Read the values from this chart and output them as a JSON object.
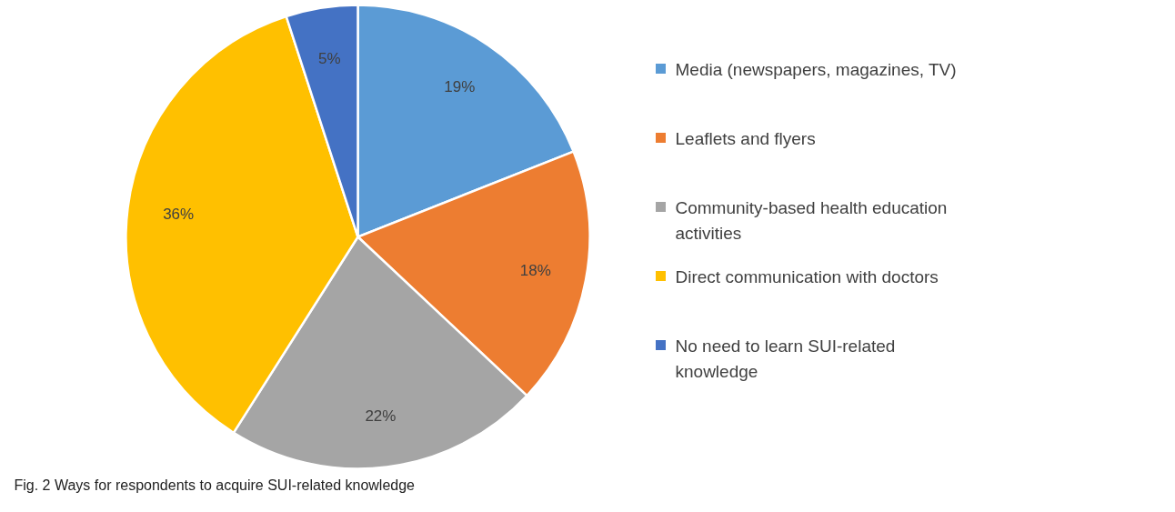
{
  "chart_data": {
    "type": "pie",
    "categories": [
      "Media (newspapers, magazines, TV)",
      "Leaflets and flyers",
      "Community-based health education activities",
      "Direct communication with doctors",
      "No need to learn SUI-related knowledge"
    ],
    "values": [
      19,
      18,
      22,
      36,
      5
    ],
    "colors": [
      "#5b9bd5",
      "#ed7d31",
      "#a5a5a5",
      "#ffc000",
      "#4472c4"
    ],
    "value_labels": [
      "19%",
      "18%",
      "22%",
      "36%",
      "5%"
    ],
    "legend": "right",
    "annotations": [
      "Fig. 2  Ways for respondents to acquire SUI-related knowledge"
    ]
  }
}
